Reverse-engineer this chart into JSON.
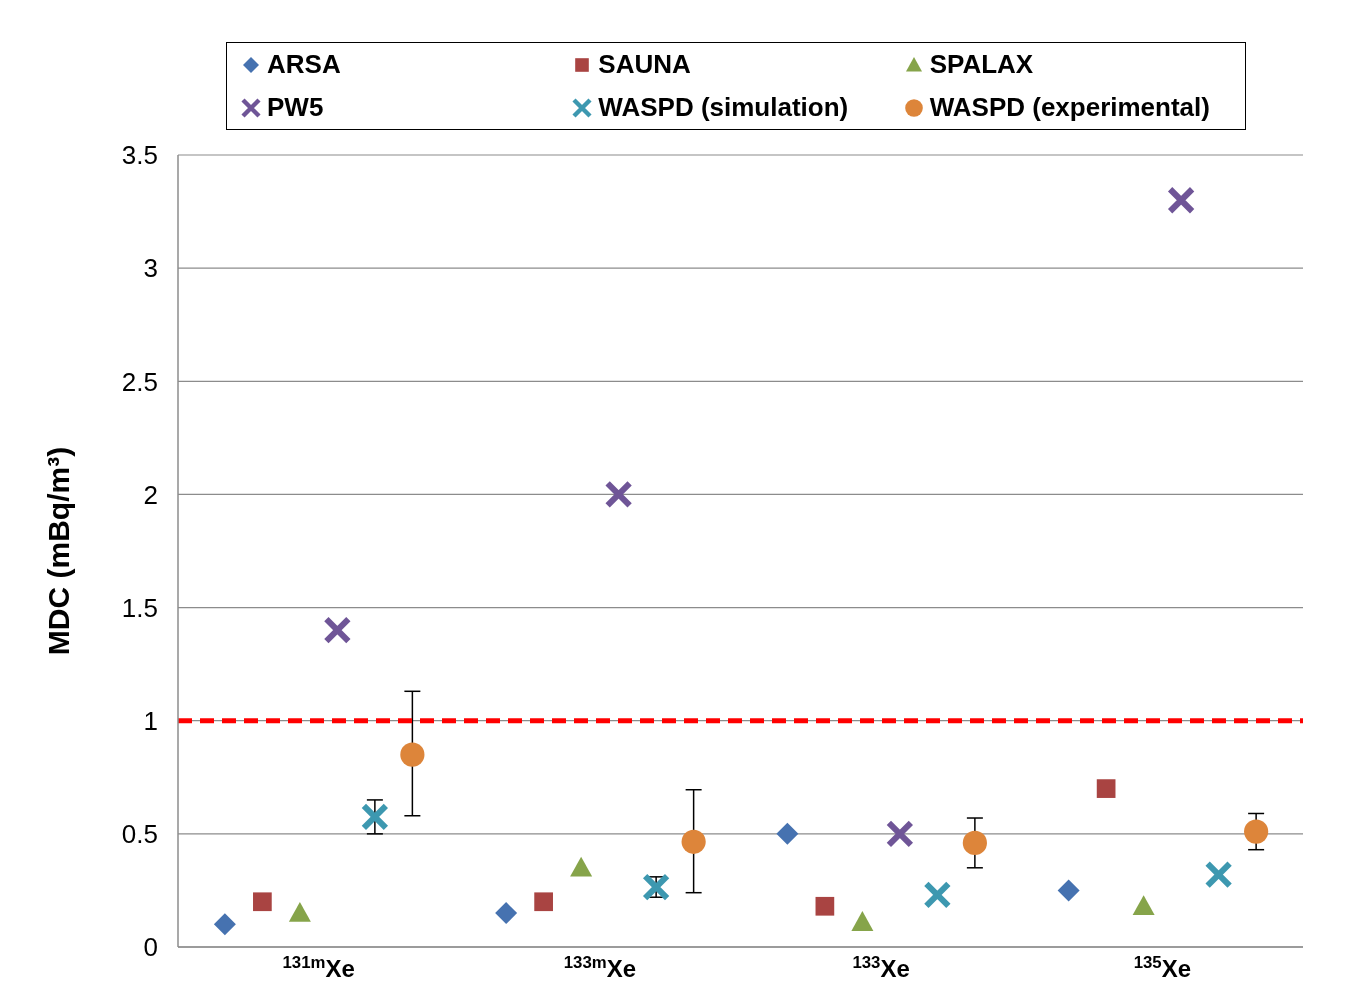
{
  "chart_data": {
    "type": "scatter",
    "ylabel": "MDC (mBq/m³)",
    "categories": [
      "$^{131m}$Xe",
      "$^{133m}$Xe",
      "$^{133}$Xe",
      "$^{135}$Xe"
    ],
    "series": [
      {
        "name": "ARSA",
        "color": "#4672b0",
        "marker": "diamond",
        "values": [
          0.1,
          0.15,
          0.5,
          0.25
        ]
      },
      {
        "name": "SAUNA",
        "color": "#a94442",
        "marker": "square",
        "values": [
          0.2,
          0.2,
          0.18,
          0.7
        ]
      },
      {
        "name": "SPALAX",
        "color": "#86a44a",
        "marker": "triangle",
        "values": [
          0.15,
          0.35,
          0.11,
          0.18
        ]
      },
      {
        "name": "PW5",
        "color": "#6f5597",
        "marker": "cross",
        "values": [
          1.4,
          2.0,
          0.5,
          3.3
        ]
      },
      {
        "name": "WASPD (simulation)",
        "color": "#3d98b0",
        "marker": "cross",
        "values": [
          0.575,
          0.265,
          0.23,
          0.32
        ],
        "errors": [
          [
            0.5,
            0.65
          ],
          [
            0.22,
            0.31
          ],
          null,
          null
        ]
      },
      {
        "name": "WASPD (experimental)",
        "color": "#dd853a",
        "marker": "circle",
        "values": [
          0.85,
          0.465,
          0.46,
          0.51
        ],
        "errors": [
          [
            0.58,
            1.13
          ],
          [
            0.24,
            0.695
          ],
          [
            0.35,
            0.57
          ],
          [
            0.43,
            0.59
          ]
        ]
      }
    ],
    "ylim": [
      0,
      3.5
    ],
    "yticks": [
      0,
      0.5,
      1,
      1.5,
      2,
      2.5,
      3,
      3.5
    ],
    "grid": "y",
    "legend": "top",
    "ref_lines": [
      {
        "axis": "y",
        "value": 1,
        "color": "#ff0000",
        "line_style": "dashed"
      }
    ]
  }
}
